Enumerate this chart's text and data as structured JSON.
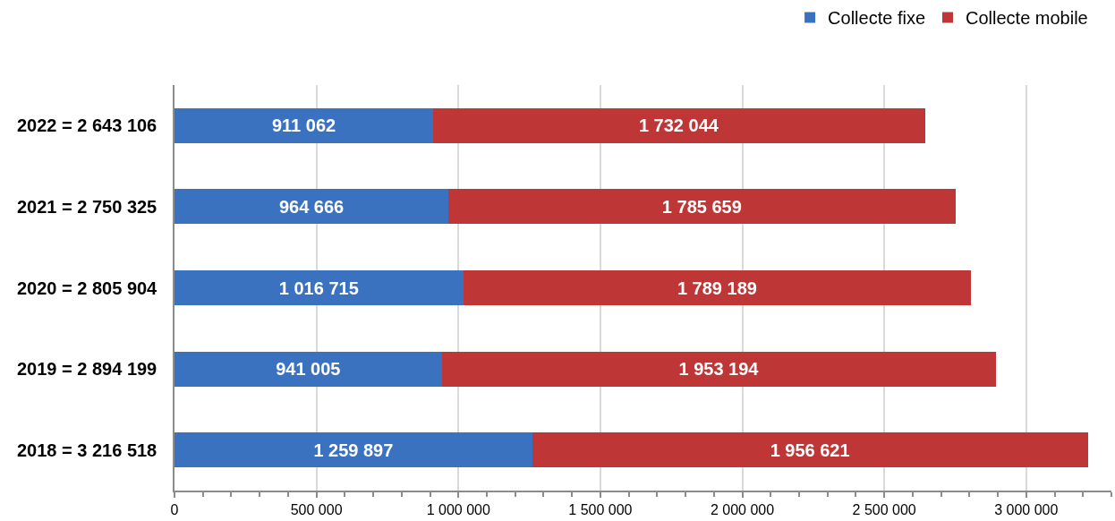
{
  "chart_data": {
    "type": "bar",
    "orientation": "horizontal",
    "stacked": true,
    "categories": [
      "2022 = 2 643 106",
      "2021 = 2 750 325",
      "2020 = 2 805 904",
      "2019 = 2 894 199",
      "2018 = 3 216 518"
    ],
    "series": [
      {
        "name": "Collecte fixe",
        "color": "#3a72c0",
        "values": [
          911062,
          964666,
          1016715,
          941005,
          1259897
        ],
        "value_labels": [
          "911 062",
          "964 666",
          "1 016 715",
          "941 005",
          "1 259 897"
        ]
      },
      {
        "name": "Collecte mobile",
        "color": "#bf3636",
        "values": [
          1732044,
          1785659,
          1789189,
          1953194,
          1956621
        ],
        "value_labels": [
          "1 732 044",
          "1 785 659",
          "1 789 189",
          "1 953 194",
          "1 956 621"
        ]
      }
    ],
    "xlim": [
      0,
      3300000
    ],
    "xticks": [
      0,
      {
        "value": 100000,
        "label": null
      },
      {
        "value": 200000,
        "label": null
      },
      {
        "value": 300000,
        "label": null
      },
      {
        "value": 400000,
        "label": null
      },
      {
        "value": 500000,
        "label": "500 000"
      },
      {
        "value": 600000,
        "label": null
      },
      {
        "value": 700000,
        "label": null
      },
      {
        "value": 800000,
        "label": null
      },
      {
        "value": 900000,
        "label": null
      },
      {
        "value": 1000000,
        "label": "1 000 000"
      },
      {
        "value": 1100000,
        "label": null
      },
      {
        "value": 1200000,
        "label": null
      },
      {
        "value": 1300000,
        "label": null
      },
      {
        "value": 1400000,
        "label": null
      },
      {
        "value": 1500000,
        "label": "1 500 000"
      },
      {
        "value": 1600000,
        "label": null
      },
      {
        "value": 1700000,
        "label": null
      },
      {
        "value": 1800000,
        "label": null
      },
      {
        "value": 1900000,
        "label": null
      },
      {
        "value": 2000000,
        "label": "2 000 000"
      },
      {
        "value": 2100000,
        "label": null
      },
      {
        "value": 2200000,
        "label": null
      },
      {
        "value": 2300000,
        "label": null
      },
      {
        "value": 2400000,
        "label": null
      },
      {
        "value": 2500000,
        "label": "2 500 000"
      },
      {
        "value": 2600000,
        "label": null
      },
      {
        "value": 2700000,
        "label": null
      },
      {
        "value": 2800000,
        "label": null
      },
      {
        "value": 2900000,
        "label": null
      },
      {
        "value": 3000000,
        "label": "3 000 000"
      },
      {
        "value": 3100000,
        "label": null
      },
      {
        "value": 3200000,
        "label": null
      },
      {
        "value": 3300000,
        "label": null
      }
    ],
    "grid": "x",
    "legend": "top right"
  }
}
